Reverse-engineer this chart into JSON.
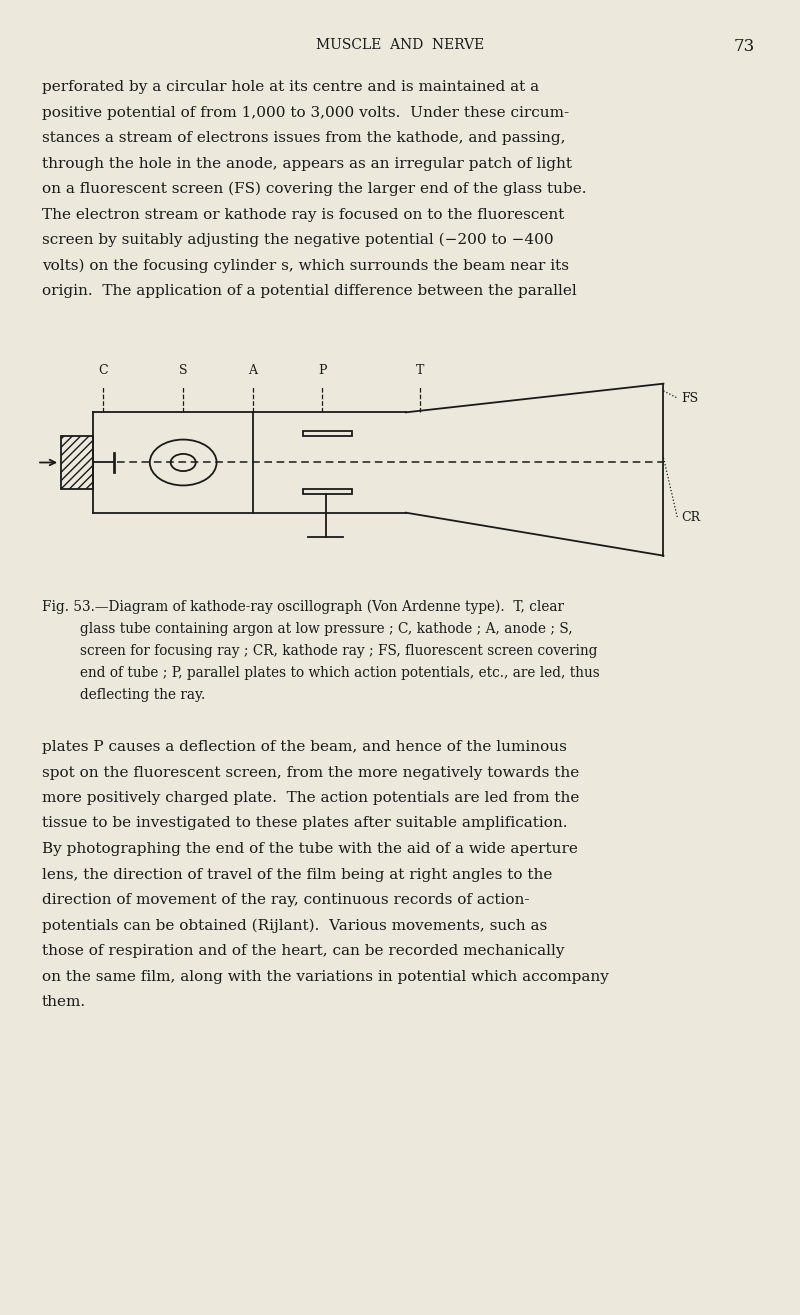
{
  "bg_color": "#EDE8DC",
  "text_color": "#1a1a1a",
  "header": "MUSCLE  AND  NERVE",
  "page_num": "73",
  "para1_lines": [
    "perforated by a circular hole at its centre and is maintained at a",
    "positive potential of from 1,000 to 3,000 volts.  Under these circum-",
    "stances a stream of electrons issues from the kathode, and passing,",
    "through the hole in the anode, appears as an irregular patch of light",
    "on a fluorescent screen (FS) covering the larger end of the glass tube.",
    "The electron stream or kathode ray is focused on to the fluorescent",
    "screen by suitably adjusting the negative potential (−200 to −400",
    "volts) on the focusing cylinder s, which surrounds the beam near its",
    "origin.  The application of a potential difference between the parallel"
  ],
  "caption_lines": [
    "Fig. 53.—Diagram of kathode-ray oscillograph (Von Ardenne type).  T, clear",
    "glass tube containing argon at low pressure ; C, kathode ; A, anode ; S,",
    "screen for focusing ray ; CR, kathode ray ; FS, fluorescent screen covering",
    "end of tube ; P, parallel plates to which action potentials, etc., are led, thus",
    "deflecting the ray."
  ],
  "para2_lines": [
    "plates P causes a deflection of the beam, and hence of the luminous",
    "spot on the fluorescent screen, from the more negatively towards the",
    "more positively charged plate.  The action potentials are led from the",
    "tissue to be investigated to these plates after suitable amplification.",
    "By photographing the end of the tube with the aid of a wide aperture",
    "lens, the direction of travel of the film being at right angles to the",
    "direction of movement of the ray, continuous records of action-",
    "potentials can be obtained (Rijlant).  Various movements, such as",
    "those of respiration and of the heart, can be recorded mechanically",
    "on the same film, along with the variations in potential which accompany",
    "them."
  ],
  "label_C": "C",
  "label_S": "S",
  "label_A": "A",
  "label_P": "P",
  "label_T": "T",
  "label_FS": "FS",
  "label_CR": "CR",
  "lc": "#1a1a1a"
}
